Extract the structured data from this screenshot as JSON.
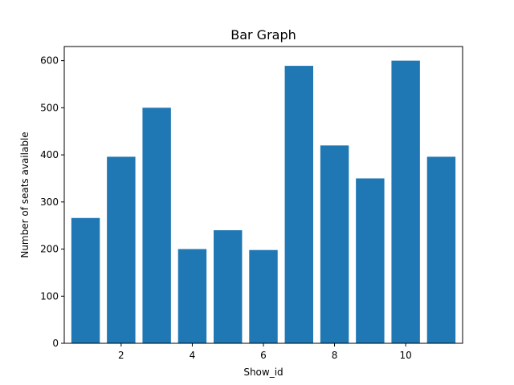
{
  "chart_data": {
    "type": "bar",
    "title": "Bar Graph",
    "xlabel": "Show_id",
    "ylabel": "Number of seats available",
    "x": [
      1,
      2,
      3,
      4,
      5,
      6,
      7,
      8,
      9,
      10,
      11
    ],
    "values": [
      266,
      396,
      500,
      200,
      240,
      198,
      589,
      420,
      350,
      600,
      396
    ],
    "xlim": [
      0.4,
      11.6
    ],
    "ylim": [
      0,
      630
    ],
    "xticks": [
      2,
      4,
      6,
      8,
      10
    ],
    "yticks": [
      0,
      100,
      200,
      300,
      400,
      500,
      600
    ],
    "bar_color": "#1f77b4",
    "grid": false,
    "legend": "none"
  }
}
